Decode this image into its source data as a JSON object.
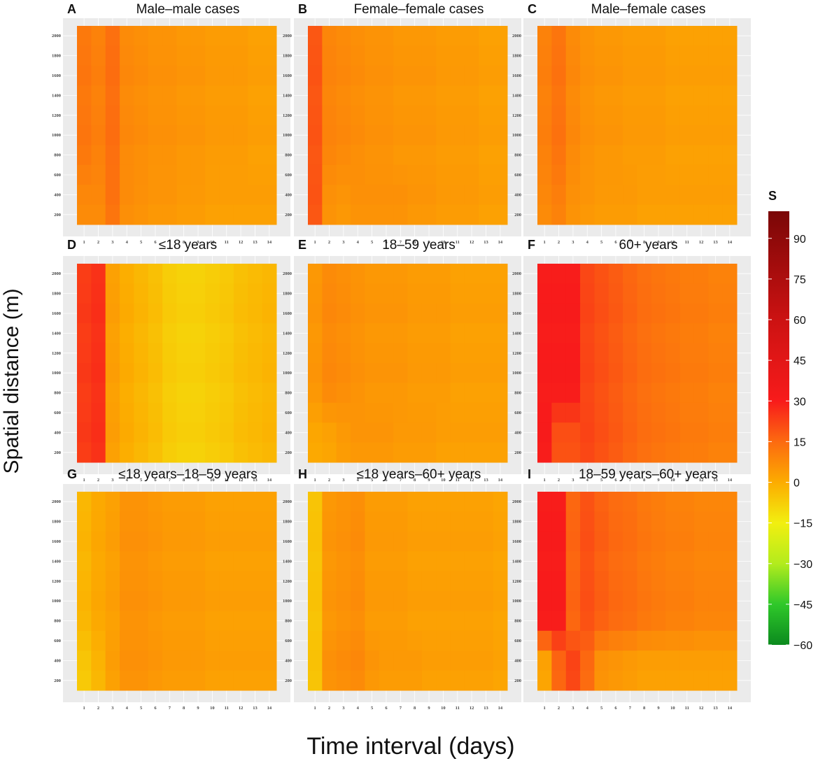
{
  "figure": {
    "ylabel": "Spatial distance (m)",
    "xlabel": "Time interval (days)"
  },
  "legend": {
    "title": "S",
    "ticks": [
      "90",
      "75",
      "60",
      "45",
      "30",
      "15",
      "0",
      "−15",
      "−30",
      "−45",
      "−60"
    ],
    "tick_values": [
      90,
      75,
      60,
      45,
      30,
      15,
      0,
      -15,
      -30,
      -45,
      -60
    ],
    "range": [
      -60,
      100
    ],
    "color_stops": [
      {
        "value": -60,
        "color": "#0b8a1e"
      },
      {
        "value": -45,
        "color": "#2fc82a"
      },
      {
        "value": -30,
        "color": "#b3ec1d"
      },
      {
        "value": -15,
        "color": "#f2ef10"
      },
      {
        "value": 0,
        "color": "#fcac00"
      },
      {
        "value": 15,
        "color": "#fc6a10"
      },
      {
        "value": 30,
        "color": "#f81b1b"
      },
      {
        "value": 60,
        "color": "#cc1212"
      },
      {
        "value": 100,
        "color": "#7a0707"
      }
    ]
  },
  "chart_data": [
    {
      "type": "heatmap",
      "panel": "A",
      "title": "Male–male cases",
      "x_ticks": [
        "1",
        "2",
        "3",
        "4",
        "5",
        "6",
        "7",
        "8",
        "9",
        "10",
        "11",
        "12",
        "13",
        "14"
      ],
      "y_ticks": [
        "2000",
        "1800",
        "1600",
        "1400",
        "1200",
        "1000",
        "800",
        "600",
        "400",
        "200"
      ],
      "col_values": [
        12,
        10,
        14,
        8,
        7,
        6,
        6,
        5,
        5,
        4,
        4,
        4,
        3,
        3
      ],
      "near_values": [
        8,
        8,
        13,
        7,
        6,
        5,
        5,
        4,
        4,
        3,
        3,
        3,
        3,
        3
      ]
    },
    {
      "type": "heatmap",
      "panel": "B",
      "title": "Female–female cases",
      "x_ticks": [
        "1",
        "2",
        "3",
        "4",
        "5",
        "6",
        "7",
        "8",
        "9",
        "10",
        "11",
        "12",
        "13",
        "14"
      ],
      "y_ticks": [
        "2000",
        "1800",
        "1600",
        "1400",
        "1200",
        "1000",
        "800",
        "600",
        "400",
        "200"
      ],
      "col_values": [
        19,
        9,
        8,
        7,
        6,
        6,
        5,
        5,
        5,
        4,
        4,
        4,
        3,
        3
      ],
      "near_values": [
        19,
        6,
        5,
        6,
        6,
        6,
        6,
        5,
        5,
        4,
        4,
        4,
        3,
        3
      ]
    },
    {
      "type": "heatmap",
      "panel": "C",
      "title": "Male–female cases",
      "x_ticks": [
        "1",
        "2",
        "3",
        "4",
        "5",
        "6",
        "7",
        "8",
        "9",
        "10",
        "11",
        "12",
        "13",
        "14"
      ],
      "y_ticks": [
        "2000",
        "1800",
        "1600",
        "1400",
        "1200",
        "1000",
        "800",
        "600",
        "400",
        "200"
      ],
      "col_values": [
        10,
        13,
        8,
        6,
        5,
        5,
        4,
        4,
        4,
        3,
        3,
        3,
        3,
        3
      ],
      "near_values": [
        8,
        10,
        6,
        5,
        4,
        4,
        4,
        3,
        3,
        3,
        3,
        3,
        3,
        3
      ]
    },
    {
      "type": "heatmap",
      "panel": "D",
      "title": "≤18 years",
      "x_ticks": [
        "1",
        "2",
        "3",
        "4",
        "5",
        "6",
        "7",
        "8",
        "9",
        "10",
        "11",
        "12",
        "13",
        "14"
      ],
      "y_ticks": [
        "2000",
        "1800",
        "1600",
        "1400",
        "1200",
        "1000",
        "800",
        "600",
        "400",
        "200"
      ],
      "col_values": [
        24,
        26,
        3,
        0,
        -2,
        -4,
        -7,
        -8,
        -8,
        -7,
        -6,
        -4,
        -3,
        -2
      ],
      "near_values": [
        24,
        26,
        3,
        0,
        -2,
        -4,
        -7,
        -8,
        -8,
        -7,
        -6,
        -4,
        -3,
        -2
      ]
    },
    {
      "type": "heatmap",
      "panel": "E",
      "title": "18–59 years",
      "x_ticks": [
        "1",
        "2",
        "3",
        "4",
        "5",
        "6",
        "7",
        "8",
        "9",
        "10",
        "11",
        "12",
        "13",
        "14"
      ],
      "y_ticks": [
        "2000",
        "1800",
        "1600",
        "1400",
        "1200",
        "1000",
        "800",
        "600",
        "400",
        "200"
      ],
      "col_values": [
        5,
        8,
        7,
        6,
        5,
        5,
        5,
        4,
        4,
        4,
        3,
        3,
        3,
        3
      ],
      "near_values": [
        1,
        2,
        4,
        5,
        5,
        5,
        4,
        4,
        4,
        3,
        3,
        3,
        3,
        3
      ]
    },
    {
      "type": "heatmap",
      "panel": "F",
      "title": "60+ years",
      "x_ticks": [
        "1",
        "2",
        "3",
        "4",
        "5",
        "6",
        "7",
        "8",
        "9",
        "10",
        "11",
        "12",
        "13",
        "14"
      ],
      "y_ticks": [
        "2000",
        "1800",
        "1600",
        "1400",
        "1200",
        "1000",
        "800",
        "600",
        "400",
        "200"
      ],
      "col_values": [
        30,
        30,
        30,
        22,
        20,
        18,
        16,
        14,
        13,
        12,
        11,
        11,
        10,
        10
      ],
      "near_values": [
        30,
        20,
        20,
        22,
        20,
        18,
        16,
        14,
        13,
        12,
        11,
        11,
        10,
        10
      ]
    },
    {
      "type": "heatmap",
      "panel": "G",
      "title": "≤18 years–18–59 years",
      "x_ticks": [
        "1",
        "2",
        "3",
        "4",
        "5",
        "6",
        "7",
        "8",
        "9",
        "10",
        "11",
        "12",
        "13",
        "14"
      ],
      "y_ticks": [
        "2000",
        "1800",
        "1600",
        "1400",
        "1200",
        "1000",
        "800",
        "600",
        "400",
        "200"
      ],
      "col_values": [
        -2,
        1,
        3,
        6,
        6,
        5,
        4,
        4,
        4,
        3,
        3,
        3,
        3,
        3
      ],
      "near_values": [
        -6,
        -2,
        3,
        6,
        6,
        5,
        4,
        4,
        4,
        3,
        3,
        3,
        3,
        3
      ]
    },
    {
      "type": "heatmap",
      "panel": "H",
      "title": "≤18 years–60+ years",
      "x_ticks": [
        "1",
        "2",
        "3",
        "4",
        "5",
        "6",
        "7",
        "8",
        "9",
        "10",
        "11",
        "12",
        "13",
        "14"
      ],
      "y_ticks": [
        "2000",
        "1800",
        "1600",
        "1400",
        "1200",
        "1000",
        "800",
        "600",
        "400",
        "200"
      ],
      "col_values": [
        -5,
        5,
        6,
        7,
        4,
        4,
        4,
        3,
        3,
        3,
        3,
        3,
        3,
        2
      ],
      "near_values": [
        -5,
        6,
        7,
        8,
        5,
        4,
        4,
        4,
        3,
        3,
        3,
        3,
        3,
        2
      ]
    },
    {
      "type": "heatmap",
      "panel": "I",
      "title": "18–59 years–60+ years",
      "x_ticks": [
        "1",
        "2",
        "3",
        "4",
        "5",
        "6",
        "7",
        "8",
        "9",
        "10",
        "11",
        "12",
        "13",
        "14"
      ],
      "y_ticks": [
        "2000",
        "1800",
        "1600",
        "1400",
        "1200",
        "1000",
        "800",
        "600",
        "400",
        "200"
      ],
      "col_values": [
        30,
        30,
        16,
        20,
        17,
        15,
        14,
        12,
        11,
        10,
        10,
        9,
        9,
        9
      ],
      "near_values": [
        2,
        16,
        22,
        15,
        6,
        5,
        4,
        3,
        3,
        3,
        3,
        3,
        3,
        3
      ]
    }
  ]
}
